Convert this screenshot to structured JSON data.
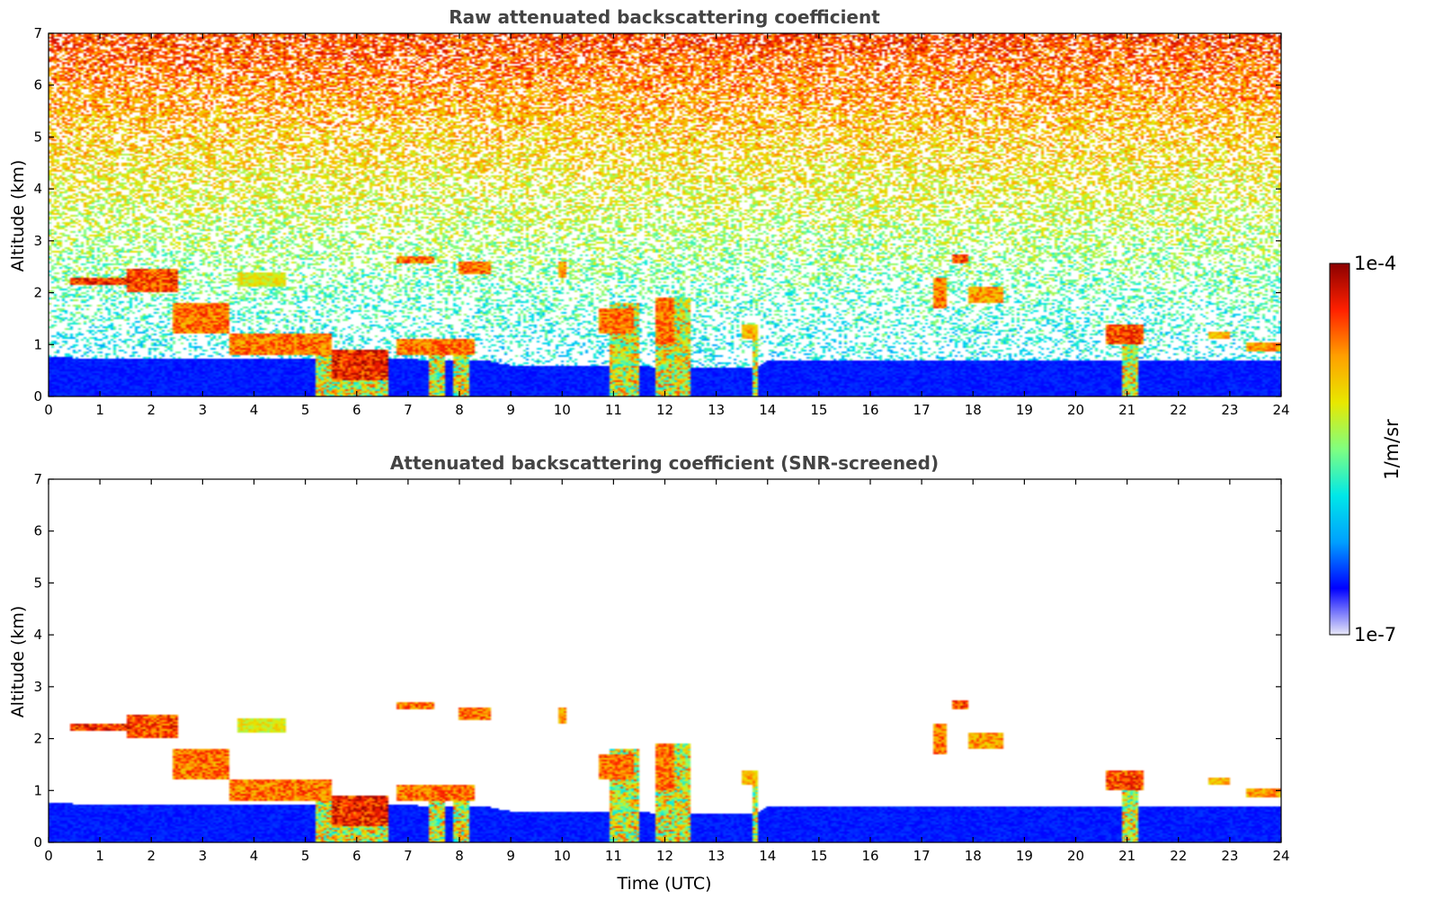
{
  "colorbar": {
    "max_label": "1e-4",
    "min_label": "1e-7",
    "unit_label": "1/m/sr",
    "colormap": [
      "#e8e8f8",
      "#0000ff",
      "#00a0ff",
      "#00e8e8",
      "#80ff80",
      "#e8e800",
      "#ffa000",
      "#ff2000",
      "#8b0000"
    ]
  },
  "chart_data": [
    {
      "type": "heatmap",
      "title": "Raw attenuated backscattering coefficient",
      "xlabel": "",
      "ylabel": "Altitude (km)",
      "xlim": [
        0,
        24
      ],
      "ylim": [
        0,
        7
      ],
      "x_ticks": [
        "0",
        "1",
        "2",
        "3",
        "4",
        "5",
        "6",
        "7",
        "8",
        "9",
        "10",
        "11",
        "12",
        "13",
        "14",
        "15",
        "16",
        "17",
        "18",
        "19",
        "20",
        "21",
        "22",
        "23",
        "24"
      ],
      "y_ticks": [
        "0",
        "1",
        "2",
        "3",
        "4",
        "5",
        "6",
        "7"
      ],
      "color_scale": "log",
      "color_range": [
        1e-07,
        0.0001
      ],
      "screened": false,
      "boundary_layer_top_km": [
        [
          0,
          0.75
        ],
        [
          3,
          0.72
        ],
        [
          6,
          0.72
        ],
        [
          8.5,
          0.7
        ],
        [
          9,
          0.6
        ],
        [
          13.8,
          0.55
        ],
        [
          14,
          0.7
        ],
        [
          24,
          0.7
        ]
      ],
      "aerosol_layers": [
        {
          "t": [
            0.4,
            1.6
          ],
          "z": [
            2.15,
            2.3
          ],
          "intensity": 1.0
        },
        {
          "t": [
            1.5,
            2.5
          ],
          "z": [
            2.0,
            2.45
          ],
          "intensity": 0.95
        },
        {
          "t": [
            2.4,
            3.5
          ],
          "z": [
            1.2,
            1.8
          ],
          "intensity": 0.9
        },
        {
          "t": [
            3.5,
            5.5
          ],
          "z": [
            0.8,
            1.2
          ],
          "intensity": 0.9
        },
        {
          "t": [
            5.5,
            6.6
          ],
          "z": [
            0.3,
            0.9
          ],
          "intensity": 1.0
        },
        {
          "t": [
            3.7,
            4.6
          ],
          "z": [
            2.1,
            2.4
          ],
          "intensity": 0.7
        },
        {
          "t": [
            6.8,
            7.5
          ],
          "z": [
            2.55,
            2.7
          ],
          "intensity": 0.9
        },
        {
          "t": [
            8.0,
            8.6
          ],
          "z": [
            2.35,
            2.6
          ],
          "intensity": 0.9
        },
        {
          "t": [
            6.8,
            8.3
          ],
          "z": [
            0.8,
            1.1
          ],
          "intensity": 0.9
        },
        {
          "t": [
            9.9,
            10.1
          ],
          "z": [
            2.3,
            2.6
          ],
          "intensity": 0.85
        },
        {
          "t": [
            10.7,
            11.4
          ],
          "z": [
            1.2,
            1.7
          ],
          "intensity": 0.9
        },
        {
          "t": [
            11.8,
            12.2
          ],
          "z": [
            1.0,
            1.9
          ],
          "intensity": 0.9
        },
        {
          "t": [
            13.5,
            13.8
          ],
          "z": [
            1.1,
            1.4
          ],
          "intensity": 0.8
        },
        {
          "t": [
            17.2,
            17.5
          ],
          "z": [
            1.7,
            2.3
          ],
          "intensity": 0.9
        },
        {
          "t": [
            17.6,
            17.9
          ],
          "z": [
            2.55,
            2.75
          ],
          "intensity": 0.95
        },
        {
          "t": [
            17.9,
            18.6
          ],
          "z": [
            1.8,
            2.1
          ],
          "intensity": 0.85
        },
        {
          "t": [
            20.6,
            21.3
          ],
          "z": [
            1.0,
            1.4
          ],
          "intensity": 0.95
        },
        {
          "t": [
            22.6,
            23.0
          ],
          "z": [
            1.1,
            1.25
          ],
          "intensity": 0.8
        },
        {
          "t": [
            23.3,
            24.0
          ],
          "z": [
            0.85,
            1.05
          ],
          "intensity": 0.85
        }
      ],
      "precip_columns": [
        {
          "t": [
            5.2,
            6.6
          ],
          "top_km": 0.9
        },
        {
          "t": [
            7.4,
            7.7
          ],
          "top_km": 1.1
        },
        {
          "t": [
            7.9,
            8.2
          ],
          "top_km": 1.1
        },
        {
          "t": [
            10.9,
            11.5
          ],
          "top_km": 1.8
        },
        {
          "t": [
            11.8,
            12.5
          ],
          "top_km": 1.9
        },
        {
          "t": [
            13.7,
            13.8
          ],
          "top_km": 1.2
        },
        {
          "t": [
            20.9,
            21.2
          ],
          "top_km": 1.3
        }
      ]
    },
    {
      "type": "heatmap",
      "title": "Attenuated backscattering coefficient (SNR-screened)",
      "xlabel": "Time (UTC)",
      "ylabel": "Altitude (km)",
      "xlim": [
        0,
        24
      ],
      "ylim": [
        0,
        7
      ],
      "x_ticks": [
        "0",
        "1",
        "2",
        "3",
        "4",
        "5",
        "6",
        "7",
        "8",
        "9",
        "10",
        "11",
        "12",
        "13",
        "14",
        "15",
        "16",
        "17",
        "18",
        "19",
        "20",
        "21",
        "22",
        "23",
        "24"
      ],
      "y_ticks": [
        "0",
        "1",
        "2",
        "3",
        "4",
        "5",
        "6",
        "7"
      ],
      "color_scale": "log",
      "color_range": [
        1e-07,
        0.0001
      ],
      "screened": true
    }
  ]
}
